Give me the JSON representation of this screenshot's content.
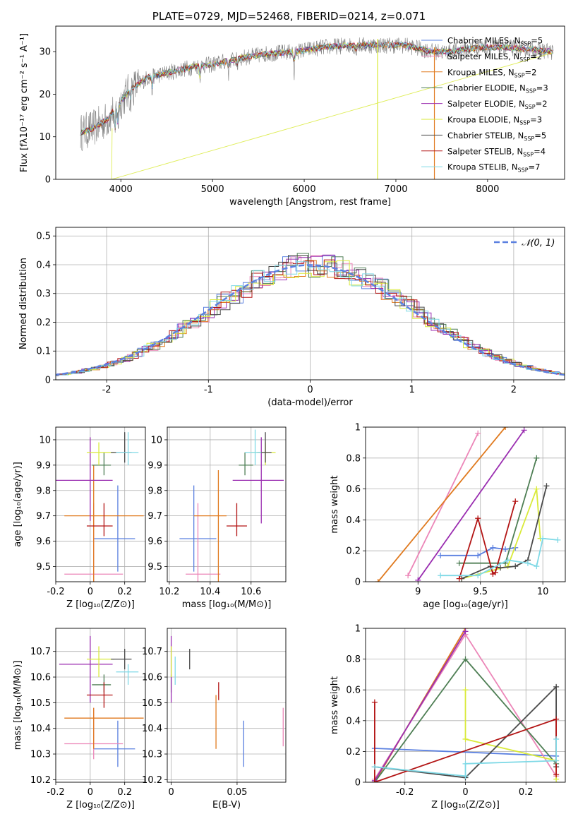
{
  "figure_title": "PLATE=0729, MJD=52468, FIBERID=0214, z=0.071",
  "colors": {
    "Chabrier MILES": "#5b80e0",
    "Salpeter MILES": "#ec86b8",
    "Kroupa MILES": "#e07a1f",
    "Chabrier ELODIE": "#4f7f55",
    "Salpeter ELODIE": "#9b2fb1",
    "Kroupa ELODIE": "#d9ea3a",
    "Chabrier STELIB": "#4a4a4a",
    "Salpeter STELIB": "#b31515",
    "Kroupa STELIB": "#7fd9e6",
    "gauss": "#5b80e0",
    "grid": "#b0b0b0"
  },
  "chart_data": [
    {
      "type": "line",
      "panel": "spectrum",
      "title": "PLATE=0729, MJD=52468, FIBERID=0214, z=0.071",
      "xlabel": "wavelength [Angstrom, rest frame]",
      "ylabel": "Flux [fλ10⁻¹⁷ erg cm⁻² s⁻¹ A⁻¹]",
      "xlim": [
        3290,
        8840
      ],
      "ylim": [
        0,
        36
      ],
      "xticks": [
        4000,
        5000,
        6000,
        7000,
        8000
      ],
      "yticks": [
        0,
        10,
        20,
        30
      ],
      "legend": "top-right",
      "grid": false,
      "continuum": {
        "x": [
          3560,
          3700,
          3850,
          3950,
          4100,
          4300,
          4500,
          4800,
          5000,
          5300,
          5600,
          5900,
          6200,
          6500,
          6800,
          7100,
          7400,
          7600,
          7900,
          8200,
          8500,
          8700
        ],
        "y": [
          11,
          12,
          14,
          17,
          21,
          24,
          25,
          26.5,
          27,
          28.5,
          29.5,
          30,
          31,
          31.5,
          31.5,
          31.5,
          30,
          30,
          31,
          31,
          30.5,
          30
        ]
      },
      "series": [
        {
          "name": "Chabrier MILES, N_SSP=5",
          "label": "Chabrier MILES, N",
          "sub": "SSP",
          "n": "=5"
        },
        {
          "name": "Salpeter MILES, N_SSP=2",
          "label": "Salpeter MILES, N",
          "sub": "SSP",
          "n": "=2"
        },
        {
          "name": "Kroupa MILES, N_SSP=2",
          "label": "Kroupa MILES, N",
          "sub": "SSP",
          "n": "=2"
        },
        {
          "name": "Chabrier ELODIE, N_SSP=3",
          "label": "Chabrier ELODIE, N",
          "sub": "SSP",
          "n": "=3"
        },
        {
          "name": "Salpeter ELODIE, N_SSP=2",
          "label": "Salpeter ELODIE, N",
          "sub": "SSP",
          "n": "=2"
        },
        {
          "name": "Kroupa ELODIE, N_SSP=3",
          "label": "Kroupa ELODIE, N",
          "sub": "SSP",
          "n": "=3"
        },
        {
          "name": "Chabrier STELIB, N_SSP=5",
          "label": "Chabrier STELIB, N",
          "sub": "SSP",
          "n": "=5"
        },
        {
          "name": "Salpeter STELIB, N_SSP=4",
          "label": "Salpeter STELIB, N",
          "sub": "SSP",
          "n": "=4"
        },
        {
          "name": "Kroupa STELIB, N_SSP=7",
          "label": "Kroupa STELIB, N",
          "sub": "SSP",
          "n": "=7"
        }
      ]
    },
    {
      "type": "histogram",
      "panel": "residuals",
      "xlabel": "(data-model)/error",
      "ylabel": "Normed distribution",
      "xlim": [
        -2.5,
        2.5
      ],
      "ylim": [
        0,
        0.53
      ],
      "xticks": [
        -2,
        -1,
        0,
        1,
        2
      ],
      "yticks": [
        0.0,
        0.1,
        0.2,
        0.3,
        0.4,
        0.5
      ],
      "grid": true,
      "legend": "top-right",
      "reference": {
        "name": "N(0,1)",
        "label": "𝒩(0, 1)",
        "mean": 0,
        "sigma": 1
      }
    },
    {
      "type": "scatter",
      "panel": "age-vs-Z",
      "xlabel": "Z [log₁₀(Z/Z⊙)]",
      "ylabel": "age  [log₁₀(age/yr)]",
      "xlim": [
        -0.2,
        0.32
      ],
      "ylim": [
        9.44,
        10.05
      ],
      "xticks": [
        -0.2,
        0.0,
        0.2
      ],
      "yticks": [
        9.5,
        9.6,
        9.7,
        9.8,
        9.9,
        10.0
      ],
      "grid": true,
      "points": [
        {
          "model": "Chabrier MILES",
          "x": 0.16,
          "y": 9.61,
          "x_lo": 0.02,
          "x_hi": 0.26,
          "y_lo": 9.48,
          "y_hi": 9.82
        },
        {
          "model": "Salpeter MILES",
          "x": 0.02,
          "y": 9.47,
          "x_lo": -0.15,
          "x_hi": 0.19,
          "y_lo": 9.44,
          "y_hi": 9.75
        },
        {
          "model": "Kroupa MILES",
          "x": 0.02,
          "y": 9.7,
          "x_lo": -0.15,
          "x_hi": 0.31,
          "y_lo": 9.44,
          "y_hi": 9.9
        },
        {
          "model": "Chabrier ELODIE",
          "x": 0.08,
          "y": 9.9,
          "x_lo": 0.01,
          "x_hi": 0.12,
          "y_lo": 9.86,
          "y_hi": 9.95
        },
        {
          "model": "Salpeter ELODIE",
          "x": 0.0,
          "y": 9.84,
          "x_lo": -0.2,
          "x_hi": 0.13,
          "y_lo": 9.68,
          "y_hi": 10.01
        },
        {
          "model": "Kroupa ELODIE",
          "x": 0.05,
          "y": 9.95,
          "x_lo": -0.02,
          "x_hi": 0.14,
          "y_lo": 9.9,
          "y_hi": 9.99
        },
        {
          "model": "Chabrier STELIB",
          "x": 0.2,
          "y": 9.95,
          "x_lo": 0.12,
          "x_hi": 0.24,
          "y_lo": 9.91,
          "y_hi": 10.03
        },
        {
          "model": "Salpeter STELIB",
          "x": 0.08,
          "y": 9.66,
          "x_lo": -0.02,
          "x_hi": 0.13,
          "y_lo": 9.62,
          "y_hi": 9.75
        },
        {
          "model": "Kroupa STELIB",
          "x": 0.22,
          "y": 9.95,
          "x_lo": 0.15,
          "x_hi": 0.28,
          "y_lo": 9.9,
          "y_hi": 10.03
        }
      ]
    },
    {
      "type": "scatter",
      "panel": "age-vs-mass",
      "xlabel": "mass [log₁₀(M/M⊙)]",
      "xlim": [
        10.19,
        10.77
      ],
      "ylim": [
        9.44,
        10.05
      ],
      "xticks": [
        10.2,
        10.4,
        10.6
      ],
      "yticks": [
        9.5,
        9.6,
        9.7,
        9.8,
        9.9,
        10.0
      ],
      "grid": true,
      "points": [
        {
          "model": "Chabrier MILES",
          "x": 10.32,
          "y": 9.61,
          "x_lo": 10.25,
          "x_hi": 10.43,
          "y_lo": 9.48,
          "y_hi": 9.82
        },
        {
          "model": "Salpeter MILES",
          "x": 10.34,
          "y": 9.47,
          "x_lo": 10.28,
          "x_hi": 10.45,
          "y_lo": 9.44,
          "y_hi": 9.75
        },
        {
          "model": "Kroupa MILES",
          "x": 10.44,
          "y": 9.7,
          "x_lo": 10.32,
          "x_hi": 10.48,
          "y_lo": 9.44,
          "y_hi": 9.88
        },
        {
          "model": "Chabrier ELODIE",
          "x": 10.57,
          "y": 9.9,
          "x_lo": 10.54,
          "x_hi": 10.61,
          "y_lo": 9.86,
          "y_hi": 9.95
        },
        {
          "model": "Salpeter ELODIE",
          "x": 10.65,
          "y": 9.84,
          "x_lo": 10.51,
          "x_hi": 10.76,
          "y_lo": 9.67,
          "y_hi": 10.01
        },
        {
          "model": "Kroupa ELODIE",
          "x": 10.67,
          "y": 9.95,
          "x_lo": 10.6,
          "x_hi": 10.72,
          "y_lo": 9.9,
          "y_hi": 9.99
        },
        {
          "model": "Chabrier STELIB",
          "x": 10.67,
          "y": 9.95,
          "x_lo": 10.63,
          "x_hi": 10.7,
          "y_lo": 9.91,
          "y_hi": 10.03
        },
        {
          "model": "Salpeter STELIB",
          "x": 10.53,
          "y": 9.66,
          "x_lo": 10.48,
          "x_hi": 10.58,
          "y_lo": 9.62,
          "y_hi": 9.75
        },
        {
          "model": "Kroupa STELIB",
          "x": 10.62,
          "y": 9.95,
          "x_lo": 10.57,
          "x_hi": 10.65,
          "y_lo": 9.9,
          "y_hi": 10.04
        }
      ]
    },
    {
      "type": "line",
      "panel": "weight-vs-age",
      "xlabel": "age  [log₁₀(age/yr)]",
      "ylabel": "mass weight",
      "xlim": [
        8.58,
        10.18
      ],
      "ylim": [
        0,
        1
      ],
      "xticks": [
        9.0,
        9.5,
        10.0
      ],
      "yticks": [
        0.0,
        0.2,
        0.4,
        0.6,
        0.8,
        1.0
      ],
      "grid": true,
      "series": [
        {
          "model": "Chabrier MILES",
          "x": [
            9.18,
            9.48,
            9.6,
            9.7,
            9.78
          ],
          "y": [
            0.17,
            0.17,
            0.22,
            0.21,
            0.22
          ]
        },
        {
          "model": "Salpeter MILES",
          "x": [
            8.92,
            9.48
          ],
          "y": [
            0.04,
            0.96
          ]
        },
        {
          "model": "Kroupa MILES",
          "x": [
            8.68,
            9.7
          ],
          "y": [
            0.0,
            1.0
          ]
        },
        {
          "model": "Chabrier ELODIE",
          "x": [
            9.33,
            9.7,
            9.95
          ],
          "y": [
            0.12,
            0.12,
            0.8
          ]
        },
        {
          "model": "Salpeter ELODIE",
          "x": [
            9.0,
            9.85
          ],
          "y": [
            0.01,
            0.98
          ]
        },
        {
          "model": "Kroupa ELODIE",
          "x": [
            9.35,
            9.72,
            9.95,
            9.98
          ],
          "y": [
            0.02,
            0.1,
            0.6,
            0.28
          ]
        },
        {
          "model": "Chabrier STELIB",
          "x": [
            9.35,
            9.58,
            9.66,
            9.78,
            9.88,
            10.03
          ],
          "y": [
            0.02,
            0.1,
            0.09,
            0.1,
            0.14,
            0.62
          ]
        },
        {
          "model": "Salpeter STELIB",
          "x": [
            9.33,
            9.48,
            9.6,
            9.62,
            9.78
          ],
          "y": [
            0.02,
            0.41,
            0.05,
            0.06,
            0.52
          ]
        },
        {
          "model": "Kroupa STELIB",
          "x": [
            9.18,
            9.48,
            9.72,
            9.88,
            9.95,
            10.0,
            10.12
          ],
          "y": [
            0.04,
            0.04,
            0.14,
            0.12,
            0.1,
            0.28,
            0.27
          ]
        }
      ]
    },
    {
      "type": "scatter",
      "panel": "mass-vs-Z",
      "xlabel": "Z [log₁₀(Z/Z⊙)]",
      "ylabel": "mass [log₁₀(M/M⊙)]",
      "xlim": [
        -0.2,
        0.32
      ],
      "ylim": [
        10.19,
        10.79
      ],
      "xticks": [
        -0.2,
        0.0,
        0.2
      ],
      "yticks": [
        10.2,
        10.3,
        10.4,
        10.5,
        10.6,
        10.7
      ],
      "grid": true,
      "points": [
        {
          "model": "Chabrier MILES",
          "x": 0.16,
          "y": 10.32,
          "x_lo": 0.02,
          "x_hi": 0.26,
          "y_lo": 10.25,
          "y_hi": 10.43
        },
        {
          "model": "Salpeter MILES",
          "x": 0.02,
          "y": 10.34,
          "x_lo": -0.15,
          "x_hi": 0.19,
          "y_lo": 10.28,
          "y_hi": 10.48
        },
        {
          "model": "Kroupa MILES",
          "x": 0.02,
          "y": 10.44,
          "x_lo": -0.15,
          "x_hi": 0.31,
          "y_lo": 10.32,
          "y_hi": 10.48
        },
        {
          "model": "Chabrier ELODIE",
          "x": 0.08,
          "y": 10.57,
          "x_lo": 0.01,
          "x_hi": 0.12,
          "y_lo": 10.54,
          "y_hi": 10.61
        },
        {
          "model": "Salpeter ELODIE",
          "x": 0.0,
          "y": 10.65,
          "x_lo": -0.18,
          "x_hi": 0.13,
          "y_lo": 10.5,
          "y_hi": 10.76
        },
        {
          "model": "Kroupa ELODIE",
          "x": 0.05,
          "y": 10.67,
          "x_lo": -0.02,
          "x_hi": 0.14,
          "y_lo": 10.6,
          "y_hi": 10.72
        },
        {
          "model": "Chabrier STELIB",
          "x": 0.2,
          "y": 10.67,
          "x_lo": 0.12,
          "x_hi": 0.24,
          "y_lo": 10.63,
          "y_hi": 10.71
        },
        {
          "model": "Salpeter STELIB",
          "x": 0.08,
          "y": 10.53,
          "x_lo": -0.02,
          "x_hi": 0.13,
          "y_lo": 10.48,
          "y_hi": 10.58
        },
        {
          "model": "Kroupa STELIB",
          "x": 0.22,
          "y": 10.62,
          "x_lo": 0.15,
          "x_hi": 0.28,
          "y_lo": 10.57,
          "y_hi": 10.65
        }
      ]
    },
    {
      "type": "scatter",
      "panel": "mass-vs-ebv",
      "xlabel": "E(B-V)",
      "xlim": [
        -0.003,
        0.087
      ],
      "ylim": [
        10.19,
        10.79
      ],
      "xticks": [
        0.0,
        0.05
      ],
      "yticks": [
        10.2,
        10.3,
        10.4,
        10.5,
        10.6,
        10.7
      ],
      "grid": true,
      "points": [
        {
          "model": "Chabrier MILES",
          "x": 0.055,
          "y": 10.32,
          "y_lo": 10.25,
          "y_hi": 10.43
        },
        {
          "model": "Salpeter MILES",
          "x": 0.085,
          "y": 10.34,
          "y_lo": 10.33,
          "y_hi": 10.48
        },
        {
          "model": "Kroupa MILES",
          "x": 0.034,
          "y": 10.44,
          "y_lo": 10.32,
          "y_hi": 10.53
        },
        {
          "model": "Chabrier ELODIE",
          "x": 0.0,
          "y": 10.57,
          "y_lo": 10.54,
          "y_hi": 10.61
        },
        {
          "model": "Salpeter ELODIE",
          "x": 0.0,
          "y": 10.65,
          "y_lo": 10.5,
          "y_hi": 10.76
        },
        {
          "model": "Kroupa ELODIE",
          "x": 0.0,
          "y": 10.67,
          "y_lo": 10.6,
          "y_hi": 10.72
        },
        {
          "model": "Chabrier STELIB",
          "x": 0.014,
          "y": 10.67,
          "y_lo": 10.63,
          "y_hi": 10.71
        },
        {
          "model": "Salpeter STELIB",
          "x": 0.036,
          "y": 10.53,
          "y_lo": 10.51,
          "y_hi": 10.58
        },
        {
          "model": "Kroupa STELIB",
          "x": 0.003,
          "y": 10.62,
          "y_lo": 10.57,
          "y_hi": 10.68
        }
      ]
    },
    {
      "type": "line",
      "panel": "weight-vs-Z",
      "xlabel": "Z [log₁₀(Z/Z⊙)]",
      "ylabel": "mass weight",
      "xlim": [
        -0.33,
        0.33
      ],
      "ylim": [
        0,
        1
      ],
      "xticks": [
        -0.2,
        0.0,
        0.2
      ],
      "yticks": [
        0.0,
        0.2,
        0.4,
        0.6,
        0.8,
        1.0
      ],
      "grid": true,
      "series": [
        {
          "model": "Chabrier MILES",
          "x": [
            -0.3,
            0.3
          ],
          "y": [
            0.22,
            0.17
          ]
        },
        {
          "model": "Salpeter MILES",
          "x": [
            -0.3,
            0.0,
            0.3
          ],
          "y": [
            0.02,
            0.96,
            0.04
          ]
        },
        {
          "model": "Kroupa MILES",
          "x": [
            -0.3,
            0.0
          ],
          "y": [
            0.0,
            1.0
          ]
        },
        {
          "model": "Chabrier ELODIE",
          "x": [
            -0.3,
            0.0,
            0.3
          ],
          "y": [
            0.0,
            0.8,
            0.12
          ]
        },
        {
          "model": "Salpeter ELODIE",
          "x": [
            -0.3,
            0.0
          ],
          "y": [
            0.01,
            0.98
          ]
        },
        {
          "model": "Kroupa ELODIE",
          "x": [
            0.0,
            0.0,
            0.3,
            0.3
          ],
          "y": [
            0.6,
            0.28,
            0.14,
            0.02
          ]
        },
        {
          "model": "Chabrier STELIB",
          "x": [
            -0.3,
            0.0,
            0.3,
            0.3
          ],
          "y": [
            0.1,
            0.03,
            0.62,
            0.1
          ]
        },
        {
          "model": "Salpeter STELIB",
          "x": [
            -0.3,
            -0.3,
            0.3,
            0.3
          ],
          "y": [
            0.52,
            0.0,
            0.41,
            0.05
          ]
        },
        {
          "model": "Kroupa STELIB",
          "x": [
            -0.3,
            0.0,
            0.0,
            0.3,
            0.3
          ],
          "y": [
            0.1,
            0.04,
            0.12,
            0.14,
            0.28
          ]
        }
      ]
    }
  ]
}
